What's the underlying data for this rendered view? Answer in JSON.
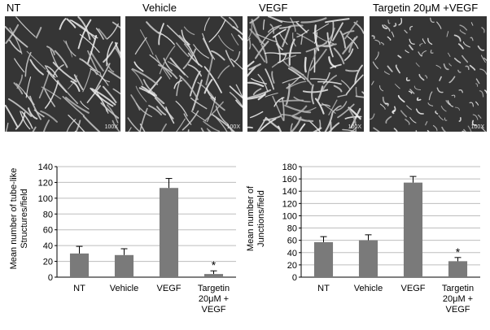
{
  "panels": [
    {
      "label": "NT",
      "magnification": "100X"
    },
    {
      "label": "Vehicle",
      "magnification": "100X"
    },
    {
      "label": "VEGF",
      "magnification": "100X"
    },
    {
      "label": "Targetin 20μM +VEGF",
      "magnification": "100X"
    }
  ],
  "chart_data": [
    {
      "type": "bar",
      "ylabel_lines": [
        "Mean number of tube-like",
        "Structures/field"
      ],
      "categories": [
        "NT",
        "Vehicle",
        "VEGF",
        "Targetin 20μM + VEGF"
      ],
      "category_lines": [
        [
          "NT"
        ],
        [
          "Vehicle"
        ],
        [
          "VEGF"
        ],
        [
          "Targetin",
          "20μM +",
          "VEGF"
        ]
      ],
      "values": [
        30,
        28,
        113,
        4
      ],
      "errors": [
        9,
        8,
        12,
        4
      ],
      "annotations": [
        "",
        "",
        "",
        "*"
      ],
      "ylim": [
        0,
        140
      ],
      "yticks": [
        0,
        20,
        40,
        60,
        80,
        100,
        120,
        140
      ],
      "bar_color": "#7a7a7a",
      "grid": true
    },
    {
      "type": "bar",
      "ylabel_lines": [
        "Mean number of",
        "Junctions/field"
      ],
      "categories": [
        "NT",
        "Vehicle",
        "VEGF",
        "Targetin 20μM + VEGF"
      ],
      "category_lines": [
        [
          "NT"
        ],
        [
          "Vehicle"
        ],
        [
          "VEGF"
        ],
        [
          "Targetin",
          "20μM +",
          "VEGF"
        ]
      ],
      "values": [
        57,
        60,
        154,
        26
      ],
      "errors": [
        9,
        9,
        10,
        6
      ],
      "annotations": [
        "",
        "",
        "",
        "*"
      ],
      "ylim": [
        0,
        180
      ],
      "yticks": [
        0,
        20,
        40,
        60,
        80,
        100,
        120,
        140,
        160,
        180
      ],
      "bar_color": "#7a7a7a",
      "grid": true
    }
  ]
}
